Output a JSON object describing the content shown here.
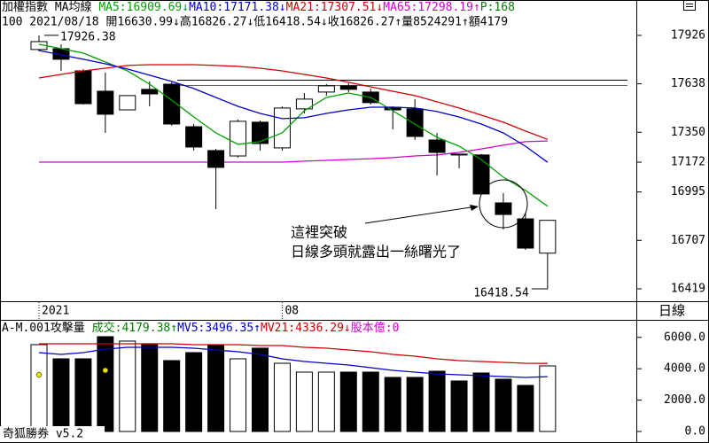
{
  "chart_data": [
    {
      "type": "candlestick",
      "legend_title": "加權指數 MA均線",
      "info_line": "100  2021/08/18 開16630.99↓高16826.27↓低16418.54↓收16826.27↑量8524291↑額4179",
      "extra_legend": {
        "text": "P:168",
        "color": "#008000"
      },
      "categories": [
        "2021",
        null,
        null,
        null,
        null,
        null,
        null,
        null,
        null,
        null,
        null,
        "08",
        null,
        null,
        null,
        null,
        null,
        null,
        null,
        null,
        null,
        null,
        null,
        null
      ],
      "open": [
        17842,
        17847,
        17715,
        17594,
        17483,
        17605,
        17636,
        17383,
        17241,
        17209,
        17410,
        17257,
        17489,
        17589,
        17626,
        17589,
        17499,
        17489,
        17304,
        17220,
        17215,
        16930,
        16835,
        16630.99
      ],
      "high": [
        17926.38,
        17873,
        17726,
        17705,
        17568,
        17652,
        17647,
        17399,
        17251,
        17425,
        17420,
        17504,
        17583,
        17636,
        17641,
        17610,
        17504,
        17547,
        17346,
        17220,
        17220,
        16988,
        16872,
        16826.27
      ],
      "low": [
        17831,
        17715,
        17515,
        17346,
        17483,
        17504,
        17389,
        17241,
        16893,
        17199,
        17241,
        17241,
        17462,
        17568,
        17589,
        17515,
        17367,
        17304,
        17093,
        17136,
        16977,
        16772,
        16651,
        16418.54
      ],
      "close": [
        17889,
        17784,
        17520,
        17457,
        17568,
        17578,
        17399,
        17262,
        17141,
        17415,
        17283,
        17494,
        17547,
        17626,
        17605,
        17526,
        17483,
        17325,
        17230,
        17215,
        16983,
        16861,
        16661,
        16826.27
      ],
      "up_color": "#ffffff",
      "down_color": "#000000",
      "high_label": "17926.38",
      "low_label": "16418.54",
      "series": [
        {
          "name": "MA5:16909.69↓",
          "color": "#00a000",
          "values": [
            17873,
            17847,
            17821,
            17768,
            17715,
            17636,
            17541,
            17441,
            17346,
            17278,
            17294,
            17346,
            17478,
            17557,
            17583,
            17557,
            17478,
            17399,
            17320,
            17267,
            17188,
            17083,
            17004,
            16909.69
          ]
        },
        {
          "name": "MA10:17171.38↓",
          "color": "#0000c8",
          "values": [
            17836,
            17810,
            17784,
            17757,
            17726,
            17689,
            17652,
            17610,
            17557,
            17504,
            17462,
            17431,
            17436,
            17462,
            17483,
            17499,
            17499,
            17494,
            17473,
            17441,
            17399,
            17346,
            17267,
            17171.38
          ]
        },
        {
          "name": "MA21:17307.51↓",
          "color": "#d00000",
          "values": [
            17673,
            17694,
            17715,
            17731,
            17747,
            17752,
            17752,
            17752,
            17747,
            17742,
            17731,
            17715,
            17694,
            17673,
            17647,
            17620,
            17594,
            17568,
            17531,
            17494,
            17452,
            17410,
            17357,
            17307.51
          ]
        },
        {
          "name": "MA65:17298.19↑",
          "color": "#d000d0",
          "values": [
            17172,
            17172,
            17172,
            17172,
            17172,
            17172,
            17172,
            17172,
            17172,
            17172,
            17172,
            17172,
            17178,
            17183,
            17188,
            17193,
            17199,
            17209,
            17215,
            17230,
            17251,
            17273,
            17294,
            17298.19
          ]
        }
      ],
      "ylim": [
        16345,
        18010
      ],
      "yticks": [
        17926,
        17638,
        17350,
        17172,
        16995,
        16707,
        16419
      ],
      "annotation": [
        "這裡突破",
        "日線多頭就露出一絲曙光了"
      ]
    },
    {
      "type": "bar",
      "title": "A-M.001攻擊量",
      "volume_legend": {
        "text": "成交:4179.38↑",
        "color": "#008000"
      },
      "extra_legend": {
        "text": "股本億:0",
        "color": "#d000d0"
      },
      "values": [
        5537,
        4633,
        4633,
        6045,
        5763,
        5593,
        4520,
        5028,
        5480,
        4633,
        5311,
        4350,
        3785,
        3785,
        3785,
        3785,
        3446,
        3446,
        3842,
        3220,
        3729,
        3333,
        2938,
        4179.38
      ],
      "series": [
        {
          "name": "MV5:3496.35↑",
          "color": "#0000c8",
          "values": [
            5028,
            4915,
            5028,
            5254,
            5367,
            5367,
            5367,
            5311,
            5198,
            5085,
            4915,
            4633,
            4463,
            4350,
            4237,
            4068,
            3898,
            3785,
            3672,
            3616,
            3559,
            3503,
            3446,
            3496.35
          ]
        },
        {
          "name": "MV21:4336.29↓",
          "color": "#d00000",
          "values": [
            5593,
            5593,
            5593,
            5593,
            5593,
            5593,
            5593,
            5537,
            5537,
            5537,
            5480,
            5480,
            5367,
            5311,
            5198,
            5085,
            4915,
            4802,
            4633,
            4520,
            4463,
            4407,
            4350,
            4336.29
          ]
        }
      ],
      "ylim": [
        -565,
        7060
      ],
      "yticks": [
        {
          "value": 6000,
          "label": "6000.0"
        },
        {
          "value": 4000,
          "label": "4000.0"
        },
        {
          "value": 2000,
          "label": "2000.0"
        },
        {
          "value": 0,
          "label": "0.0"
        }
      ]
    }
  ],
  "period_label": "日線",
  "footer": "奇狐勝券 v5.2"
}
